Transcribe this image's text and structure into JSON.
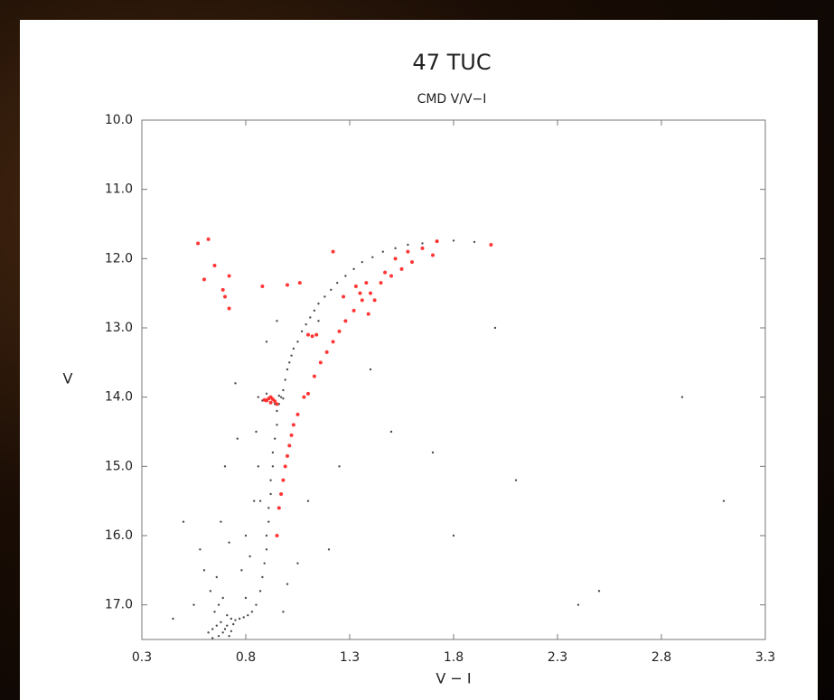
{
  "chart_data": {
    "type": "scatter",
    "title": "47 TUC",
    "subtitle": "CMD V/V−I",
    "x_label": "V − I",
    "y_label": "V",
    "xlim": [
      0.3,
      3.3
    ],
    "xticks": [
      0.3,
      0.8,
      1.3,
      1.8,
      2.3,
      2.8,
      3.3
    ],
    "ylim": [
      17.5,
      10.0
    ],
    "yticks": [
      {
        "value": 10.0,
        "label": "10.0"
      },
      {
        "value": 11.0,
        "label": "11.0"
      },
      {
        "value": 12.0,
        "label": "12.0"
      },
      {
        "value": 13.0,
        "label": "13.0"
      },
      {
        "value": 14.0,
        "label": "14.0"
      },
      {
        "value": 15.0,
        "label": "15.0"
      },
      {
        "value": 16.0,
        "label": "16.0"
      },
      {
        "value": 17.0,
        "label": "17.0"
      }
    ],
    "series": [
      {
        "color": "#000000",
        "x": [
          0.62,
          0.64,
          0.66,
          0.67,
          0.68,
          0.69,
          0.7,
          0.71,
          0.72,
          0.73,
          0.74,
          0.65,
          0.67,
          0.69,
          0.71,
          0.73,
          0.75,
          0.77,
          0.79,
          0.81,
          0.83,
          0.85,
          0.87,
          0.88,
          0.89,
          0.9,
          0.9,
          0.91,
          0.91,
          0.92,
          0.92,
          0.93,
          0.93,
          0.94,
          0.95,
          0.95,
          0.96,
          0.97,
          0.98,
          0.99,
          1.0,
          1.01,
          1.02,
          1.03,
          1.05,
          1.07,
          1.09,
          1.11,
          1.13,
          1.15,
          1.18,
          1.21,
          1.24,
          1.28,
          1.32,
          1.36,
          1.41,
          1.46,
          1.52,
          1.58,
          1.65,
          1.72,
          1.8,
          1.9,
          0.86,
          0.88,
          0.9,
          0.94,
          0.96,
          0.98,
          0.85,
          0.87,
          0.6,
          0.58,
          0.55,
          0.63,
          0.78,
          0.8,
          0.84,
          0.86,
          0.82,
          0.9,
          1.1,
          1.25,
          1.5,
          1.8,
          2.1,
          2.5,
          2.9,
          3.1,
          0.5,
          0.45,
          0.7,
          0.75,
          0.95,
          1.2,
          1.4,
          1.7,
          2.0,
          2.4,
          1.0,
          1.15,
          0.98,
          1.05,
          0.76,
          0.8,
          0.72,
          0.68,
          0.66,
          0.64
        ],
        "values": [
          17.4,
          17.35,
          17.3,
          17.45,
          17.25,
          17.4,
          17.35,
          17.3,
          17.45,
          17.38,
          17.28,
          17.1,
          17.0,
          16.9,
          17.15,
          17.2,
          17.22,
          17.2,
          17.18,
          17.15,
          17.1,
          17.0,
          16.8,
          16.6,
          16.4,
          16.2,
          16.0,
          15.8,
          15.6,
          15.4,
          15.2,
          15.0,
          14.8,
          14.6,
          14.4,
          14.2,
          14.1,
          14.0,
          13.9,
          13.75,
          13.6,
          13.5,
          13.4,
          13.3,
          13.2,
          13.05,
          12.95,
          12.85,
          12.75,
          12.65,
          12.55,
          12.45,
          12.35,
          12.25,
          12.15,
          12.05,
          11.98,
          11.9,
          11.85,
          11.8,
          11.78,
          11.75,
          11.74,
          11.76,
          14.0,
          14.05,
          13.95,
          14.1,
          13.98,
          14.02,
          14.5,
          15.5,
          16.5,
          16.2,
          17.0,
          16.8,
          16.5,
          16.0,
          15.5,
          15.0,
          16.3,
          13.2,
          15.5,
          15.0,
          14.5,
          16.0,
          15.2,
          16.8,
          14.0,
          15.5,
          15.8,
          17.2,
          15.0,
          13.8,
          12.9,
          16.2,
          13.6,
          14.8,
          13.0,
          17.0,
          16.7,
          12.9,
          17.1,
          16.4,
          14.6,
          16.9,
          16.1,
          15.8,
          16.6,
          17.48
        ]
      },
      {
        "color": "#ff2020",
        "x": [
          0.95,
          0.96,
          0.97,
          0.98,
          0.99,
          1.0,
          1.01,
          1.02,
          1.03,
          1.05,
          1.08,
          1.1,
          1.13,
          1.16,
          1.19,
          1.22,
          1.25,
          1.28,
          1.32,
          1.36,
          1.4,
          1.45,
          1.5,
          1.55,
          1.6,
          1.7,
          1.72,
          1.98,
          1.27,
          1.33,
          1.38,
          1.42,
          1.47,
          1.52,
          1.58,
          1.65,
          1.35,
          1.39,
          0.9,
          0.91,
          0.92,
          0.93,
          0.94,
          0.92,
          0.95,
          0.89,
          0.57,
          0.62,
          0.6,
          0.65,
          0.69,
          0.7,
          0.72,
          0.72,
          0.88,
          1.0,
          1.06,
          1.1,
          1.12,
          1.14,
          1.22
        ],
        "values": [
          16.0,
          15.6,
          15.4,
          15.2,
          15.0,
          14.85,
          14.7,
          14.55,
          14.4,
          14.25,
          14.0,
          13.95,
          13.7,
          13.5,
          13.35,
          13.2,
          13.05,
          12.9,
          12.75,
          12.6,
          12.5,
          12.35,
          12.25,
          12.15,
          12.05,
          11.95,
          11.75,
          11.8,
          12.55,
          12.4,
          12.35,
          12.6,
          12.2,
          12.0,
          11.9,
          11.85,
          12.5,
          12.8,
          14.05,
          14.02,
          14.08,
          14.03,
          14.06,
          14.0,
          14.1,
          14.04,
          11.78,
          11.72,
          12.3,
          12.1,
          12.45,
          12.55,
          12.25,
          12.72,
          12.4,
          12.38,
          12.35,
          13.1,
          13.12,
          13.1,
          11.9
        ]
      }
    ]
  }
}
